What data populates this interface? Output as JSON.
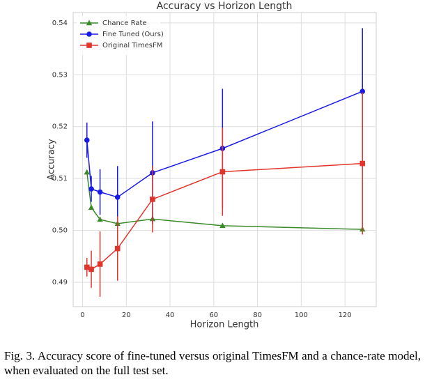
{
  "chart_data": {
    "type": "line",
    "title": "Accuracy vs Horizon Length",
    "x_label": "Horizon Length",
    "y_label": "Accuracy",
    "x": [
      2,
      4,
      8,
      16,
      32,
      64,
      128
    ],
    "series": [
      {
        "name": "Chance Rate",
        "color": "#3a8a2a",
        "marker": "triangle",
        "values": [
          0.5112,
          0.5044,
          0.5021,
          0.5013,
          0.5022,
          0.5009,
          0.5002
        ]
      },
      {
        "name": "Fine Tuned (Ours)",
        "color": "#1a1ae6",
        "marker": "circle",
        "values": [
          0.5174,
          0.508,
          0.5074,
          0.5064,
          0.5111,
          0.5158,
          0.5268
        ],
        "errors": [
          0.0034,
          0.0025,
          0.0044,
          0.006,
          0.0099,
          0.0115,
          0.0122
        ]
      },
      {
        "name": "Original TimesFM",
        "color": "#e0352b",
        "marker": "square",
        "values": [
          0.4929,
          0.4925,
          0.4935,
          0.4965,
          0.506,
          0.5113,
          0.5129
        ],
        "errors": [
          0.0018,
          0.0036,
          0.0063,
          0.0062,
          0.0064,
          0.0085,
          0.0137
        ]
      }
    ],
    "xlim": [
      -4.3,
      134.3
    ],
    "xticks": [
      0,
      20,
      40,
      60,
      80,
      100,
      120
    ],
    "ylim": [
      0.4853,
      0.542
    ],
    "yticks": [
      0.49,
      {
        "value": 0.5,
        "label": "0.50"
      },
      0.51,
      0.52,
      0.53,
      0.54
    ],
    "grid": true,
    "legend": "upper left"
  },
  "caption": "Fig. 3. Accuracy score of fine-tuned versus original TimesFM and a chance-rate model, when evaluated on the full test set."
}
